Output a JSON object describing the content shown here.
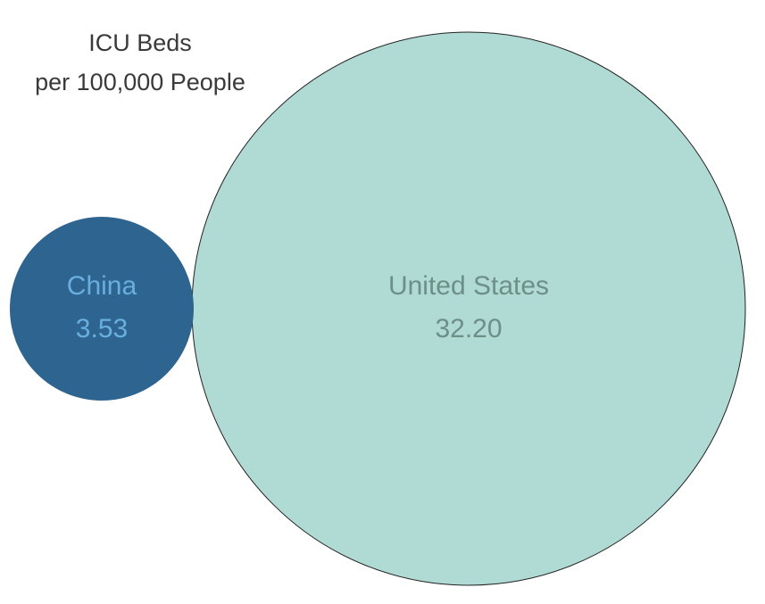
{
  "chart_data": {
    "type": "bubble",
    "title_lines": [
      "ICU Beds",
      "per 100,000 People"
    ],
    "series": [
      {
        "name": "China",
        "value": 3.53,
        "label_value": "3.53",
        "fill": "#2e6590",
        "text_color": "#6aaee0",
        "stroke": "none"
      },
      {
        "name": "United States",
        "value": 32.2,
        "label_value": "32.20",
        "fill": "#b0dbd5",
        "text_color": "#6d8f88",
        "stroke": "#222222"
      }
    ]
  }
}
